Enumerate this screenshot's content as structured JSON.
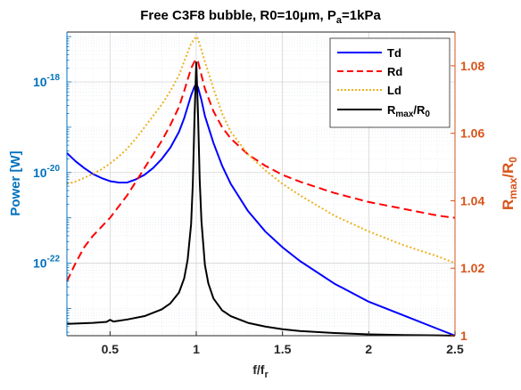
{
  "chart_data": {
    "type": "line",
    "title": "Free C3F8 bubble, R0=10",
    "title_mu": "μ",
    "title_mid": "m, P",
    "title_sub": "a",
    "title_end": "=1kPa",
    "xlabel_main": "f/f",
    "xlabel_sub": "r",
    "ylabel_left": "Power [W]",
    "ylabel_right_main": "R",
    "ylabel_right_sub1": "max",
    "ylabel_right_mid": "/R",
    "ylabel_right_sub2": "0",
    "xlim": [
      0.25,
      2.5
    ],
    "ylim_left_log10": [
      -23.6,
      -16.9
    ],
    "ylim_right": [
      1.0,
      1.09
    ],
    "y_scale_left": "log",
    "grid": true,
    "minor_grid": true,
    "legend_location": "top-right",
    "x_ticks": [
      0.5,
      1,
      1.5,
      2,
      2.5
    ],
    "x_tick_labels": [
      "0.5",
      "1",
      "1.5",
      "2",
      "2.5"
    ],
    "y_left_ticks": [
      -22,
      -20,
      -18
    ],
    "y_left_tick_base": "10",
    "y_left_tick_exps": [
      "-22",
      "-20",
      "-18"
    ],
    "y_right_ticks": [
      1.0,
      1.02,
      1.04,
      1.06,
      1.08
    ],
    "y_right_tick_labels": [
      "1",
      "1.02",
      "1.04",
      "1.06",
      "1.08"
    ],
    "series": [
      {
        "name": "Td",
        "axis": "left",
        "color": "#0000ff",
        "style": "solid",
        "x": [
          0.25,
          0.3,
          0.35,
          0.4,
          0.45,
          0.5,
          0.55,
          0.6,
          0.65,
          0.7,
          0.75,
          0.8,
          0.85,
          0.9,
          0.93,
          0.95,
          0.97,
          0.99,
          1.0,
          1.01,
          1.03,
          1.05,
          1.1,
          1.15,
          1.2,
          1.3,
          1.4,
          1.5,
          1.6,
          1.8,
          2.0,
          2.2,
          2.4,
          2.5
        ],
        "log10_y": [
          -19.57,
          -19.75,
          -19.9,
          -20.03,
          -20.12,
          -20.19,
          -20.22,
          -20.22,
          -20.15,
          -20.05,
          -19.9,
          -19.7,
          -19.45,
          -19.1,
          -18.8,
          -18.55,
          -18.3,
          -18.1,
          -18.05,
          -18.12,
          -18.4,
          -18.75,
          -19.35,
          -19.85,
          -20.25,
          -20.85,
          -21.3,
          -21.65,
          -21.95,
          -22.45,
          -22.85,
          -23.15,
          -23.45,
          -23.6
        ]
      },
      {
        "name": "Rd",
        "axis": "left",
        "color": "#ff0000",
        "style": "dashed",
        "x": [
          0.25,
          0.3,
          0.35,
          0.4,
          0.45,
          0.5,
          0.55,
          0.6,
          0.65,
          0.7,
          0.75,
          0.8,
          0.85,
          0.9,
          0.93,
          0.95,
          0.97,
          0.99,
          1.0,
          1.01,
          1.03,
          1.05,
          1.1,
          1.15,
          1.2,
          1.3,
          1.4,
          1.5,
          1.6,
          1.8,
          2.0,
          2.2,
          2.4,
          2.5
        ],
        "log10_y": [
          -22.4,
          -22.0,
          -21.65,
          -21.4,
          -21.2,
          -21.0,
          -20.75,
          -20.5,
          -20.2,
          -19.9,
          -19.6,
          -19.3,
          -18.95,
          -18.55,
          -18.2,
          -17.95,
          -17.7,
          -17.55,
          -17.5,
          -17.55,
          -17.85,
          -18.15,
          -18.65,
          -19.0,
          -19.25,
          -19.6,
          -19.85,
          -20.05,
          -20.2,
          -20.45,
          -20.65,
          -20.8,
          -20.95,
          -21.0
        ]
      },
      {
        "name": "Ld",
        "axis": "left",
        "color": "#edb120",
        "style": "dotted",
        "x": [
          0.25,
          0.3,
          0.35,
          0.4,
          0.45,
          0.5,
          0.55,
          0.6,
          0.65,
          0.7,
          0.75,
          0.8,
          0.85,
          0.9,
          0.93,
          0.95,
          0.97,
          0.99,
          1.0,
          1.01,
          1.03,
          1.05,
          1.1,
          1.15,
          1.2,
          1.3,
          1.4,
          1.5,
          1.6,
          1.8,
          2.0,
          2.2,
          2.4,
          2.5
        ],
        "log10_y": [
          -20.25,
          -20.2,
          -20.12,
          -20.03,
          -19.93,
          -19.8,
          -19.65,
          -19.47,
          -19.25,
          -19.0,
          -18.75,
          -18.5,
          -18.2,
          -17.85,
          -17.55,
          -17.35,
          -17.15,
          -17.05,
          -17.0,
          -17.05,
          -17.3,
          -17.55,
          -18.15,
          -18.7,
          -19.1,
          -19.6,
          -19.95,
          -20.25,
          -20.5,
          -20.95,
          -21.3,
          -21.6,
          -21.85,
          -22.0
        ]
      },
      {
        "name": "R_max/R_0",
        "legend_main": "R",
        "legend_sub1": "max",
        "legend_mid": "/R",
        "legend_sub2": "0",
        "axis": "right",
        "color": "#000000",
        "style": "solid",
        "x": [
          0.25,
          0.3,
          0.4,
          0.48,
          0.5,
          0.52,
          0.6,
          0.7,
          0.8,
          0.85,
          0.9,
          0.93,
          0.95,
          0.97,
          0.98,
          0.99,
          1.0,
          1.01,
          1.02,
          1.03,
          1.05,
          1.07,
          1.1,
          1.15,
          1.2,
          1.3,
          1.4,
          1.5,
          1.6,
          1.8,
          2.0,
          2.2,
          2.4,
          2.5
        ],
        "y": [
          1.0035,
          1.0036,
          1.0038,
          1.0041,
          1.0047,
          1.0042,
          1.0048,
          1.0058,
          1.0078,
          1.0096,
          1.0128,
          1.017,
          1.0225,
          1.033,
          1.045,
          1.065,
          1.081,
          1.066,
          1.046,
          1.034,
          1.021,
          1.0155,
          1.011,
          1.0075,
          1.0058,
          1.0038,
          1.0027,
          1.0019,
          1.0014,
          1.0008,
          1.0004,
          1.0002,
          1.0001,
          1.0
        ]
      }
    ]
  }
}
